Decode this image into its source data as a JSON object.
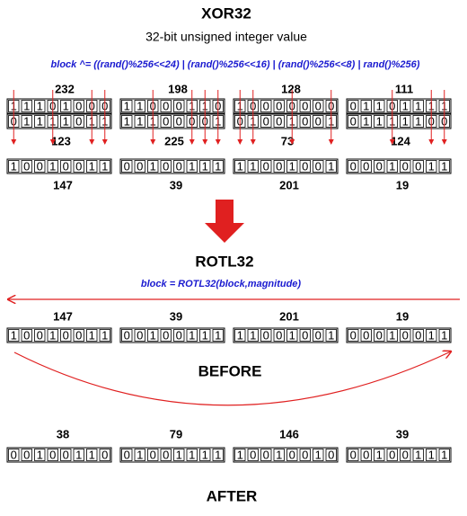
{
  "title": "XOR32",
  "subtitle": "32-bit unsigned integer value",
  "xor_formula": "block ^= ((rand()%256<<24) | (rand()%256<<16) | (rand()%256<<8) | rand()%256)",
  "xor_bytes": [
    {
      "a": 232,
      "a_bits": [
        "1",
        "1",
        "1",
        "0",
        "1",
        "0",
        "0",
        "0"
      ],
      "b_bits": [
        "0",
        "1",
        "1",
        "1",
        "1",
        "0",
        "1",
        "1"
      ],
      "b": 123,
      "result_bits": [
        "1",
        "0",
        "0",
        "1",
        "0",
        "0",
        "1",
        "1"
      ],
      "result": 147
    },
    {
      "a": 198,
      "a_bits": [
        "1",
        "1",
        "0",
        "0",
        "0",
        "1",
        "1",
        "0"
      ],
      "b_bits": [
        "1",
        "1",
        "1",
        "0",
        "0",
        "0",
        "0",
        "1"
      ],
      "b": 225,
      "result_bits": [
        "0",
        "0",
        "1",
        "0",
        "0",
        "1",
        "1",
        "1"
      ],
      "result": 39
    },
    {
      "a": 128,
      "a_bits": [
        "1",
        "0",
        "0",
        "0",
        "0",
        "0",
        "0",
        "0"
      ],
      "b_bits": [
        "0",
        "1",
        "0",
        "0",
        "1",
        "0",
        "0",
        "1"
      ],
      "b": 73,
      "result_bits": [
        "1",
        "1",
        "0",
        "0",
        "1",
        "0",
        "0",
        "1"
      ],
      "result": 201
    },
    {
      "a": 111,
      "a_bits": [
        "0",
        "1",
        "1",
        "0",
        "1",
        "1",
        "1",
        "1"
      ],
      "b_bits": [
        "0",
        "1",
        "1",
        "1",
        "1",
        "1",
        "0",
        "0"
      ],
      "b": 124,
      "result_bits": [
        "0",
        "0",
        "0",
        "1",
        "0",
        "0",
        "1",
        "1"
      ],
      "result": 19
    }
  ],
  "rotl_title": "ROTL32",
  "rotl_formula": "block = ROTL32(block,magnitude)",
  "before_bytes": [
    {
      "value": 147,
      "bits": [
        "1",
        "0",
        "0",
        "1",
        "0",
        "0",
        "1",
        "1"
      ]
    },
    {
      "value": 39,
      "bits": [
        "0",
        "0",
        "1",
        "0",
        "0",
        "1",
        "1",
        "1"
      ]
    },
    {
      "value": 201,
      "bits": [
        "1",
        "1",
        "0",
        "0",
        "1",
        "0",
        "0",
        "1"
      ]
    },
    {
      "value": 19,
      "bits": [
        "0",
        "0",
        "0",
        "1",
        "0",
        "0",
        "1",
        "1"
      ]
    }
  ],
  "before_label": "BEFORE",
  "after_bytes": [
    {
      "value": 38,
      "bits": [
        "0",
        "0",
        "1",
        "0",
        "0",
        "1",
        "1",
        "0"
      ]
    },
    {
      "value": 79,
      "bits": [
        "0",
        "1",
        "0",
        "0",
        "1",
        "1",
        "1",
        "1"
      ]
    },
    {
      "value": 146,
      "bits": [
        "1",
        "0",
        "0",
        "1",
        "0",
        "0",
        "1",
        "0"
      ]
    },
    {
      "value": 39,
      "bits": [
        "0",
        "0",
        "1",
        "0",
        "0",
        "1",
        "1",
        "1"
      ]
    }
  ],
  "after_label": "AFTER"
}
